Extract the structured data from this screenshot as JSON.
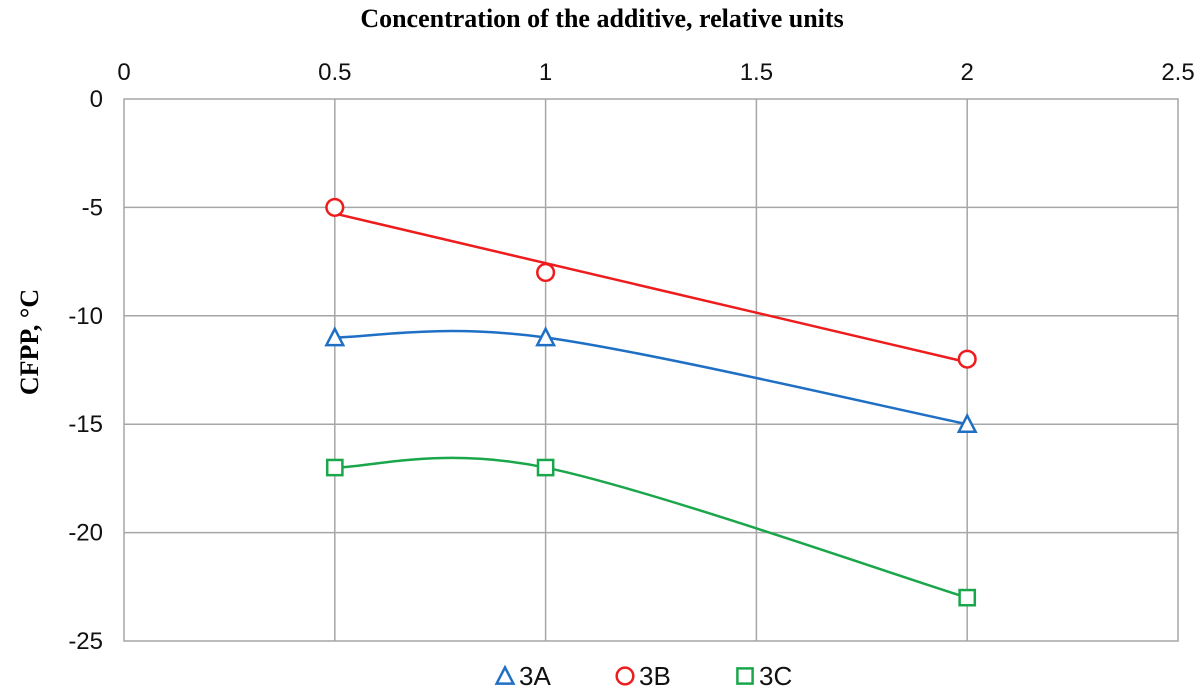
{
  "chart_data": {
    "type": "line",
    "xlabel": "Concentration of the additive, relative units",
    "ylabel": "CFPP, °C",
    "x_axis_position": "top",
    "xlim": [
      0,
      2.5
    ],
    "ylim": [
      -25,
      0
    ],
    "x_ticks": [
      0,
      0.5,
      1,
      1.5,
      2,
      2.5
    ],
    "x_tick_labels": [
      "0",
      "0.5",
      "1",
      "1.5",
      "2",
      "2.5"
    ],
    "y_ticks": [
      0,
      -5,
      -10,
      -15,
      -20,
      -25
    ],
    "y_tick_labels": [
      "0",
      "-5",
      "-10",
      "-15",
      "-20",
      "-25"
    ],
    "grid": true,
    "legend_position": "bottom",
    "series": [
      {
        "name": "3A",
        "color": "#1f6fc5",
        "marker": "triangle",
        "smooth": true,
        "x": [
          0.5,
          1,
          2
        ],
        "y": [
          -11,
          -11,
          -15
        ]
      },
      {
        "name": "3B",
        "color": "#ee1c1c",
        "marker": "circle",
        "smooth": false,
        "x": [
          0.5,
          1,
          2
        ],
        "y": [
          -5,
          -8,
          -12
        ]
      },
      {
        "name": "3C",
        "color": "#1aa64a",
        "marker": "square",
        "smooth": true,
        "x": [
          0.5,
          1,
          2
        ],
        "y": [
          -17,
          -17,
          -23
        ]
      }
    ]
  }
}
